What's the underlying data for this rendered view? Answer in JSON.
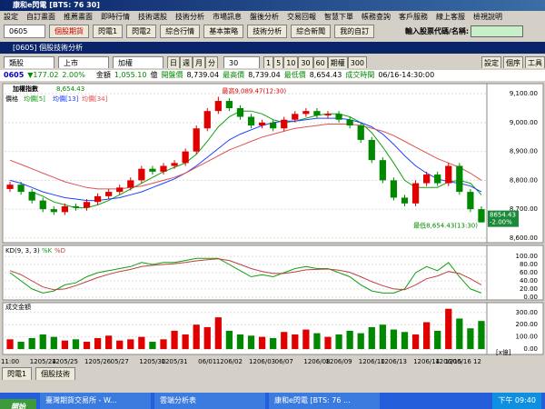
{
  "window_title": "康和e閃電 [BTS: 76 30]",
  "menu": [
    "設定",
    "自訂畫面",
    "推薦畫面",
    "即時行情",
    "技術選股",
    "技術分析",
    "市場訊息",
    "盤後分析",
    "交易回報",
    "智慧下單",
    "帳務查詢",
    "客戶服務",
    "線上客服",
    "檢視說明"
  ],
  "toolbar": {
    "code": "0605",
    "buttons": [
      "個股期貨",
      "閃電1",
      "閃電2",
      "綜合行情",
      "基本策略",
      "技術分析",
      "綜合新聞",
      "我的自訂"
    ],
    "search_label": "輸入股票代碼/名稱:"
  },
  "panel": {
    "title": "[0605] 個股技術分析",
    "buttons": [
      "設定",
      "個序",
      "工具"
    ]
  },
  "controls": {
    "items": [
      "類股",
      "上市",
      "加權"
    ],
    "periods": [
      "日",
      "週",
      "月",
      "分"
    ],
    "count": "30",
    "minutes": [
      "1",
      "5",
      "10",
      "30",
      "60",
      "期權",
      "300"
    ]
  },
  "quote": {
    "code": "0605",
    "change": "▼177.02",
    "pct": "2.00%",
    "items": [
      "金額",
      "1,055.10",
      "億",
      "開盤價",
      "8,739.04",
      "最高價",
      "8,739.04",
      "最低價",
      "8,654.43",
      "成交時間",
      "06/16-14:30:00"
    ]
  },
  "chart_data": {
    "type": "candlestick",
    "title": "加權指數",
    "last": "8,654.43",
    "legend_label": "價格",
    "categories": [
      "11:00",
      null,
      null,
      "1205/24",
      null,
      "1205/25",
      null,
      null,
      "1205/26",
      null,
      "05/27",
      null,
      null,
      "1205/30",
      null,
      "1205/31",
      null,
      null,
      "06/01",
      null,
      "1206/02",
      null,
      null,
      "1206/03",
      null,
      "06/07",
      null,
      null,
      "1206/08",
      null,
      "1206/09",
      null,
      null,
      "1206/10",
      null,
      "1206/13",
      null,
      null,
      "1206/14",
      null,
      "1206/15",
      null,
      null,
      "1206/16 12"
    ],
    "open": [
      8770,
      8785,
      8760,
      8730,
      8700,
      8690,
      8710,
      8705,
      8725,
      8745,
      8760,
      8775,
      8800,
      8840,
      8830,
      8850,
      8860,
      8900,
      8980,
      9040,
      9075,
      9050,
      9020,
      8990,
      9000,
      8980,
      9010,
      9030,
      9040,
      9025,
      9030,
      9010,
      8990,
      8940,
      8870,
      8800,
      8740,
      8720,
      8790,
      8820,
      8790,
      8850,
      8760,
      8700
    ],
    "high": [
      8795,
      8795,
      8770,
      8740,
      8710,
      8720,
      8720,
      8735,
      8755,
      8770,
      8785,
      8810,
      8850,
      8850,
      8860,
      8870,
      8910,
      8990,
      9050,
      9089.47,
      9085,
      9060,
      9030,
      9010,
      9010,
      9020,
      9040,
      9050,
      9050,
      9040,
      9040,
      9020,
      9000,
      8950,
      8880,
      8810,
      8750,
      8800,
      8830,
      8830,
      8860,
      8860,
      8770,
      8710
    ],
    "low": [
      8760,
      8750,
      8720,
      8690,
      8680,
      8680,
      8695,
      8695,
      8715,
      8735,
      8750,
      8765,
      8790,
      8820,
      8820,
      8840,
      8850,
      8890,
      8970,
      9030,
      9040,
      9010,
      8980,
      8980,
      8970,
      8970,
      9000,
      9020,
      9015,
      9015,
      9000,
      8980,
      8930,
      8860,
      8790,
      8730,
      8710,
      8710,
      8780,
      8780,
      8780,
      8750,
      8690,
      8654.43
    ],
    "close": [
      8785,
      8760,
      8730,
      8700,
      8690,
      8710,
      8705,
      8725,
      8745,
      8760,
      8775,
      8800,
      8840,
      8830,
      8850,
      8860,
      8900,
      8980,
      9040,
      9075,
      9050,
      9020,
      8990,
      9000,
      8980,
      9010,
      9030,
      9040,
      9025,
      9030,
      9010,
      8990,
      8940,
      8870,
      8800,
      8740,
      8720,
      8790,
      8820,
      8790,
      8850,
      8760,
      8700,
      8654.43
    ],
    "up_color": "#e00000",
    "down_color": "#008800",
    "series": [
      {
        "name": "均價[5]",
        "color": "#10a010",
        "values": [
          null,
          null,
          8760,
          8745,
          8725,
          8715,
          8705,
          8705,
          8715,
          8730,
          8750,
          8770,
          8790,
          8810,
          8830,
          8845,
          8860,
          8890,
          8935,
          8985,
          9020,
          9040,
          9040,
          9030,
          9010,
          9000,
          9005,
          9015,
          9025,
          9030,
          9030,
          9020,
          9000,
          8965,
          8915,
          8860,
          8800,
          8775,
          8775,
          8775,
          8795,
          8800,
          8790,
          8750
        ]
      },
      {
        "name": "均價[13]",
        "color": "#2040ff",
        "values": [
          8800,
          8790,
          8775,
          8760,
          8750,
          8740,
          8735,
          8730,
          8730,
          8735,
          8740,
          8750,
          8760,
          8775,
          8790,
          8805,
          8825,
          8850,
          8880,
          8910,
          8940,
          8960,
          8975,
          8990,
          9000,
          9005,
          9005,
          9010,
          9015,
          9015,
          9015,
          9010,
          9000,
          8985,
          8960,
          8925,
          8885,
          8850,
          8825,
          8805,
          8795,
          8790,
          8780,
          8760
        ]
      },
      {
        "name": "均價[34]",
        "color": "#e05050",
        "values": [
          8870,
          8855,
          8840,
          8825,
          8810,
          8795,
          8785,
          8775,
          8770,
          8770,
          8770,
          8775,
          8780,
          8790,
          8800,
          8810,
          8825,
          8845,
          8865,
          8885,
          8905,
          8920,
          8935,
          8950,
          8960,
          8970,
          8980,
          8985,
          8990,
          8995,
          8995,
          8995,
          8990,
          8980,
          8970,
          8955,
          8935,
          8915,
          8895,
          8875,
          8860,
          8845,
          8825,
          8800
        ]
      }
    ],
    "ylim": [
      8584,
      9135
    ],
    "yticks": [
      {
        "value": 9100,
        "label": "9,100.00"
      },
      {
        "value": 9000,
        "label": "9,000.00"
      },
      {
        "value": 8900,
        "label": "8,900.00"
      },
      {
        "value": 8800,
        "label": "8,800.00"
      },
      {
        "value": 8700,
        "label": "8,700.00"
      },
      {
        "value": 8600,
        "label": "8,600.00"
      }
    ],
    "annotations": [
      "最高9,089.47(12:30)",
      "最低8,654.43(13:30)"
    ],
    "last_tag": "8654.43",
    "last_pct": "-2.00%",
    "kd": {
      "title": "KD(9, 3, 3)",
      "ylim": [
        -7,
        127
      ],
      "yticks": [
        {
          "value": 100,
          "label": "100.00"
        },
        {
          "value": 80,
          "label": "80.00"
        },
        {
          "value": 60,
          "label": "60.00"
        },
        {
          "value": 40,
          "label": "40.00"
        },
        {
          "value": 20,
          "label": "20.00"
        },
        {
          "value": 0,
          "label": "0.00"
        }
      ],
      "series": [
        {
          "name": "%K",
          "color": "#10a010",
          "values": [
            60,
            40,
            20,
            10,
            15,
            30,
            35,
            50,
            60,
            65,
            70,
            75,
            85,
            80,
            85,
            85,
            90,
            95,
            95,
            95,
            80,
            65,
            50,
            55,
            50,
            60,
            70,
            75,
            70,
            70,
            60,
            50,
            30,
            15,
            10,
            10,
            20,
            60,
            75,
            65,
            85,
            50,
            20,
            10
          ]
        },
        {
          "name": "%D",
          "color": "#c04040",
          "values": [
            65,
            55,
            40,
            25,
            18,
            20,
            28,
            38,
            48,
            56,
            63,
            68,
            75,
            78,
            80,
            82,
            85,
            89,
            92,
            94,
            90,
            80,
            70,
            63,
            58,
            58,
            62,
            67,
            68,
            69,
            66,
            61,
            50,
            38,
            28,
            20,
            18,
            30,
            45,
            52,
            63,
            58,
            45,
            30
          ]
        }
      ]
    },
    "volume": {
      "title": "成交金額",
      "unit": "[x億]",
      "ylim": [
        -44,
        380
      ],
      "yticks": [
        {
          "value": 300,
          "label": "300.00"
        },
        {
          "value": 200,
          "label": "200.00"
        },
        {
          "value": 100,
          "label": "100.00"
        },
        {
          "value": 0,
          "label": "0.00"
        }
      ],
      "values": [
        80,
        60,
        90,
        120,
        100,
        70,
        80,
        60,
        90,
        110,
        70,
        80,
        100,
        60,
        80,
        150,
        120,
        200,
        180,
        260,
        150,
        120,
        110,
        100,
        90,
        140,
        120,
        160,
        130,
        100,
        120,
        150,
        130,
        180,
        200,
        160,
        140,
        120,
        220,
        150,
        330,
        250,
        170,
        230
      ]
    }
  },
  "tabs": [
    "閃電1",
    "個股技術"
  ],
  "taskbar": {
    "start": "開始",
    "items": [
      "臺灣期貨交易所 - W...",
      "雲端分析表",
      "康和e閃電 [BTS: 76 ..."
    ],
    "clock": "下午 09:40"
  }
}
